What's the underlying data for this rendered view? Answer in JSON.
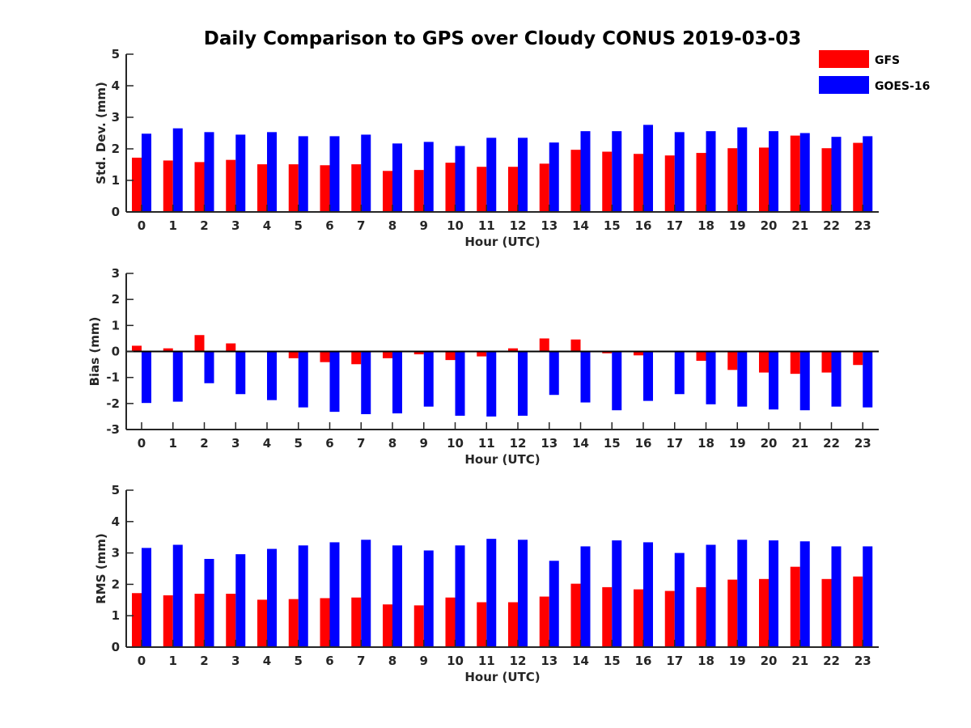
{
  "title": "Daily Comparison to GPS over Cloudy CONUS 2019-03-03",
  "colors": {
    "GFS": "#ff0000",
    "GOES-16": "#0000ff"
  },
  "legend": {
    "placement": "top-right",
    "entries": [
      "GFS",
      "GOES-16"
    ]
  },
  "chart_data": [
    {
      "type": "bar",
      "xlabel": "Hour (UTC)",
      "ylabel": "Std. Dev. (mm)",
      "ylim": [
        0,
        5
      ],
      "yticks": [
        0,
        1,
        2,
        3,
        4,
        5
      ],
      "categories": [
        "0",
        "1",
        "2",
        "3",
        "4",
        "5",
        "6",
        "7",
        "8",
        "9",
        "10",
        "11",
        "12",
        "13",
        "14",
        "15",
        "16",
        "17",
        "18",
        "19",
        "20",
        "21",
        "22",
        "23"
      ],
      "series": [
        {
          "name": "GFS",
          "values": [
            1.72,
            1.63,
            1.58,
            1.65,
            1.51,
            1.51,
            1.48,
            1.51,
            1.3,
            1.33,
            1.56,
            1.43,
            1.43,
            1.53,
            1.97,
            1.91,
            1.84,
            1.79,
            1.87,
            2.02,
            2.04,
            2.42,
            2.02,
            2.19
          ]
        },
        {
          "name": "GOES-16",
          "values": [
            2.48,
            2.65,
            2.53,
            2.45,
            2.53,
            2.4,
            2.4,
            2.45,
            2.17,
            2.22,
            2.09,
            2.35,
            2.35,
            2.2,
            2.56,
            2.56,
            2.76,
            2.53,
            2.56,
            2.68,
            2.56,
            2.5,
            2.38,
            2.4
          ]
        }
      ]
    },
    {
      "type": "bar",
      "xlabel": "Hour (UTC)",
      "ylabel": "Bias (mm)",
      "ylim": [
        -3,
        3
      ],
      "yticks": [
        -3,
        -2,
        -1,
        0,
        1,
        2,
        3
      ],
      "zero_line": true,
      "categories": [
        "0",
        "1",
        "2",
        "3",
        "4",
        "5",
        "6",
        "7",
        "8",
        "9",
        "10",
        "11",
        "12",
        "13",
        "14",
        "15",
        "16",
        "17",
        "18",
        "19",
        "20",
        "21",
        "22",
        "23"
      ],
      "series": [
        {
          "name": "GFS",
          "values": [
            0.22,
            0.12,
            0.63,
            0.31,
            0.0,
            -0.26,
            -0.41,
            -0.49,
            -0.26,
            -0.11,
            -0.33,
            -0.19,
            0.12,
            0.5,
            0.46,
            -0.07,
            -0.15,
            0.0,
            -0.36,
            -0.71,
            -0.81,
            -0.86,
            -0.81,
            -0.52
          ]
        },
        {
          "name": "GOES-16",
          "values": [
            -1.98,
            -1.93,
            -1.22,
            -1.64,
            -1.87,
            -2.15,
            -2.32,
            -2.41,
            -2.38,
            -2.12,
            -2.47,
            -2.5,
            -2.47,
            -1.67,
            -1.96,
            -2.26,
            -1.9,
            -1.64,
            -2.03,
            -2.12,
            -2.23,
            -2.26,
            -2.12,
            -2.15
          ]
        }
      ]
    },
    {
      "type": "bar",
      "xlabel": "Hour (UTC)",
      "ylabel": "RMS (mm)",
      "ylim": [
        0,
        5
      ],
      "yticks": [
        0,
        1,
        2,
        3,
        4,
        5
      ],
      "categories": [
        "0",
        "1",
        "2",
        "3",
        "4",
        "5",
        "6",
        "7",
        "8",
        "9",
        "10",
        "11",
        "12",
        "13",
        "14",
        "15",
        "16",
        "17",
        "18",
        "19",
        "20",
        "21",
        "22",
        "23"
      ],
      "series": [
        {
          "name": "GFS",
          "values": [
            1.72,
            1.65,
            1.7,
            1.7,
            1.51,
            1.53,
            1.56,
            1.58,
            1.36,
            1.33,
            1.58,
            1.43,
            1.43,
            1.61,
            2.02,
            1.91,
            1.84,
            1.79,
            1.91,
            2.15,
            2.17,
            2.56,
            2.17,
            2.25
          ]
        },
        {
          "name": "GOES-16",
          "values": [
            3.16,
            3.26,
            2.81,
            2.96,
            3.13,
            3.24,
            3.34,
            3.42,
            3.24,
            3.08,
            3.24,
            3.45,
            3.42,
            2.75,
            3.21,
            3.4,
            3.34,
            3.0,
            3.26,
            3.42,
            3.4,
            3.37,
            3.21,
            3.21
          ]
        }
      ]
    }
  ]
}
